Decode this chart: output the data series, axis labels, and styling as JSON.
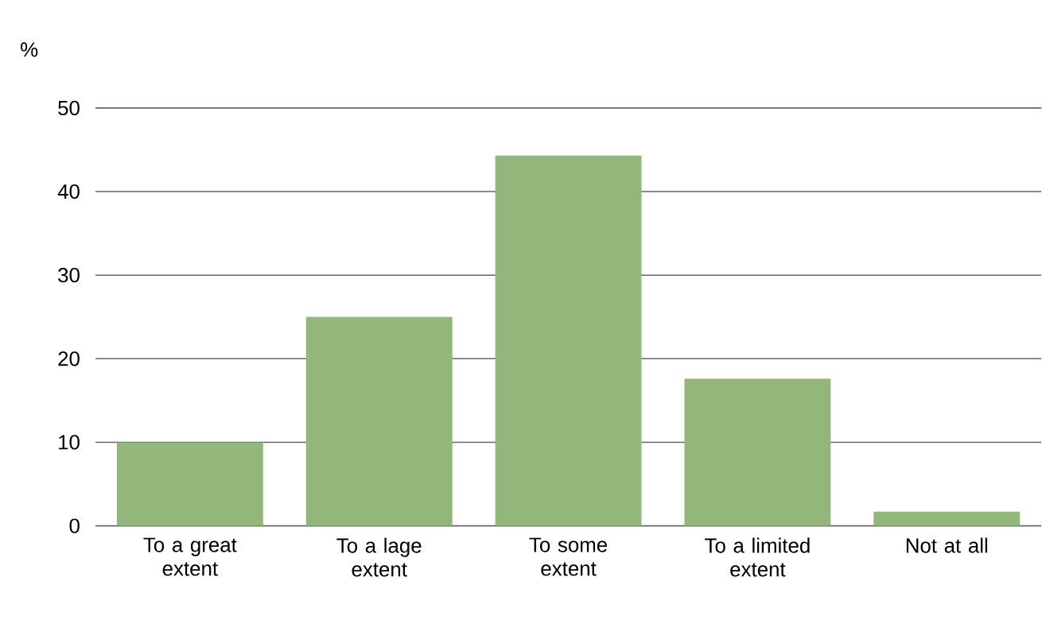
{
  "chart_data": {
    "type": "bar",
    "ylabel": "%",
    "categories": [
      "To a great extent",
      "To a lage extent",
      "To some extent",
      "To a limited extent",
      "Not at all"
    ],
    "values": [
      10,
      25,
      44.3,
      17.6,
      1.7
    ],
    "color": "#93b67a",
    "ylim": [
      0,
      50
    ],
    "yticks": [
      0,
      10,
      20,
      30,
      40,
      50
    ],
    "grid": "y"
  }
}
